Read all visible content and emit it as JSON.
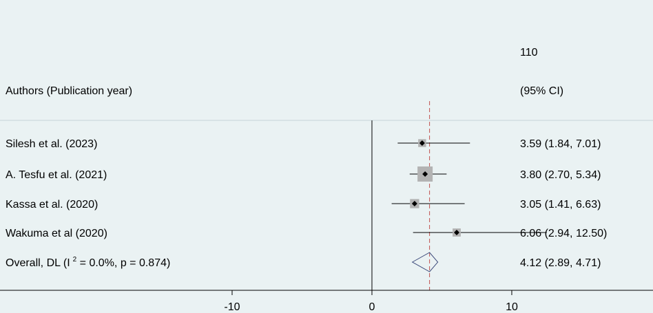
{
  "chart_data": {
    "type": "forest",
    "header": {
      "left_label": "Authors (Publication year)",
      "right_line1": "110",
      "right_line2": "(95% CI)"
    },
    "studies": [
      {
        "label": "Silesh et al. (2023)",
        "estimate": 3.59,
        "lower": 1.84,
        "upper": 7.01,
        "weight": 14,
        "ci_text": "3.59 (1.84, 7.01)"
      },
      {
        "label": "A. Tesfu et al. (2021)",
        "estimate": 3.8,
        "lower": 2.7,
        "upper": 5.34,
        "weight": 52,
        "ci_text": "3.80 (2.70, 5.34)"
      },
      {
        "label": "Kassa  et al. (2020)",
        "estimate": 3.05,
        "lower": 1.41,
        "upper": 6.63,
        "weight": 19,
        "ci_text": "3.05 (1.41, 6.63)"
      },
      {
        "label": "Wakuma et al (2020)",
        "estimate": 6.06,
        "lower": 2.94,
        "upper": 12.5,
        "weight": 15,
        "ci_text": "6.06 (2.94, 12.50)"
      }
    ],
    "overall": {
      "label_prefix": "Overall, DL (I",
      "label_sup": "2",
      "label_suffix": " = 0.0%, p = 0.874)",
      "estimate": 4.12,
      "lower": 2.89,
      "upper": 4.71,
      "ci_text": "4.12 (2.89, 4.71)"
    },
    "x_axis": {
      "ticks": [
        -10,
        0,
        10
      ],
      "tick_labels": [
        "-10",
        "0",
        "10"
      ],
      "range": [
        -26.6,
        20.1
      ]
    },
    "null_line": 0,
    "colors": {
      "background": "#eaf2f3",
      "separator": "#c7d4d9",
      "axis": "#000000",
      "ci_line": "#000000",
      "weight_box": "#b3b3b3",
      "point": "#000000",
      "overall_line": "#c0504d",
      "diamond": "#3c4a7a"
    }
  }
}
